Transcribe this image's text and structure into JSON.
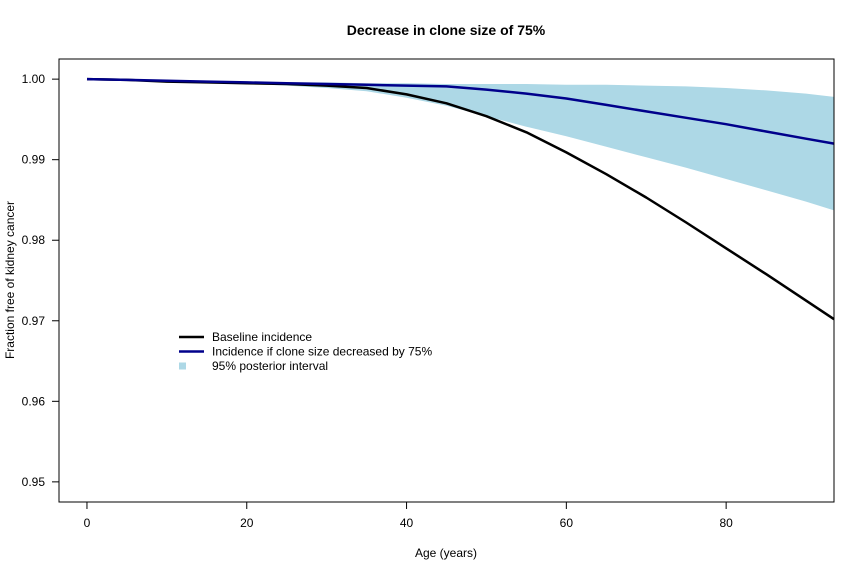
{
  "chart_data": {
    "type": "line",
    "title": "Decrease in clone size of 75%",
    "xlabel": "Age (years)",
    "ylabel": "Fraction free of kidney cancer",
    "xlim": [
      -3.5,
      93.5
    ],
    "ylim": [
      0.9475,
      1.0025
    ],
    "x_ticks": [
      0,
      20,
      40,
      60,
      80
    ],
    "y_ticks": [
      0.95,
      0.96,
      0.97,
      0.98,
      0.99,
      1.0
    ],
    "y_tick_labels": [
      "0.95",
      "0.96",
      "0.97",
      "0.98",
      "0.99",
      "1.00"
    ],
    "grid": false,
    "legend_position": "center-left",
    "series": [
      {
        "name": "Baseline incidence",
        "color": "#000000",
        "style": "line",
        "x": [
          0,
          5,
          10,
          15,
          20,
          25,
          30,
          35,
          40,
          45,
          50,
          55,
          60,
          65,
          70,
          75,
          80,
          85,
          90,
          93.5
        ],
        "y": [
          1.0,
          0.9999,
          0.9997,
          0.9996,
          0.9995,
          0.9994,
          0.9992,
          0.9989,
          0.9981,
          0.997,
          0.9954,
          0.9934,
          0.9909,
          0.9882,
          0.9853,
          0.9822,
          0.979,
          0.9758,
          0.9725,
          0.9702
        ]
      },
      {
        "name": "Incidence if clone size decreased by 75%",
        "color": "#00008b",
        "style": "line",
        "x": [
          0,
          5,
          10,
          15,
          20,
          25,
          30,
          35,
          40,
          45,
          50,
          55,
          60,
          65,
          70,
          75,
          80,
          85,
          90,
          93.5
        ],
        "y": [
          1.0,
          0.9999,
          0.9998,
          0.9997,
          0.9996,
          0.9995,
          0.9994,
          0.9993,
          0.9992,
          0.9991,
          0.9987,
          0.9982,
          0.9976,
          0.9968,
          0.996,
          0.9952,
          0.9944,
          0.9935,
          0.9926,
          0.992
        ]
      },
      {
        "name": "95% posterior interval",
        "color": "#add8e6",
        "style": "band",
        "x": [
          0,
          5,
          10,
          15,
          20,
          25,
          30,
          35,
          40,
          45,
          50,
          55,
          60,
          65,
          70,
          75,
          80,
          85,
          90,
          93.5
        ],
        "lower": [
          1.0,
          0.9999,
          0.9997,
          0.9996,
          0.9994,
          0.9992,
          0.9989,
          0.9985,
          0.9977,
          0.9967,
          0.9954,
          0.9941,
          0.9929,
          0.9916,
          0.9903,
          0.989,
          0.9876,
          0.9862,
          0.9848,
          0.9837
        ],
        "upper": [
          1.0,
          0.9999,
          0.9998,
          0.9997,
          0.9997,
          0.9996,
          0.9996,
          0.9995,
          0.9995,
          0.9994,
          0.9994,
          0.9994,
          0.9993,
          0.9993,
          0.9992,
          0.9991,
          0.9989,
          0.9986,
          0.9982,
          0.9978
        ]
      }
    ]
  }
}
